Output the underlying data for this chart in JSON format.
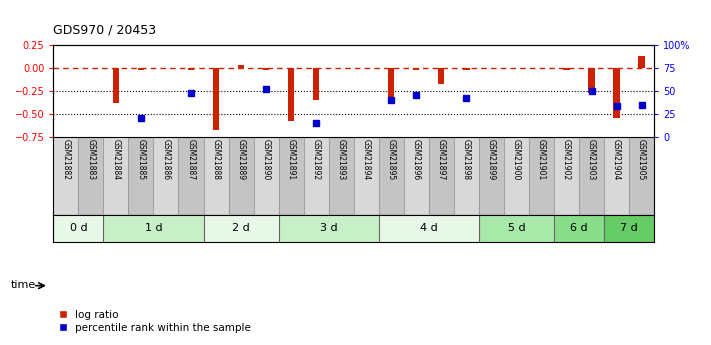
{
  "title": "GDS970 / 20453",
  "samples": [
    "GSM21882",
    "GSM21883",
    "GSM21884",
    "GSM21885",
    "GSM21886",
    "GSM21887",
    "GSM21888",
    "GSM21889",
    "GSM21890",
    "GSM21891",
    "GSM21892",
    "GSM21893",
    "GSM21894",
    "GSM21895",
    "GSM21896",
    "GSM21897",
    "GSM21898",
    "GSM21899",
    "GSM21900",
    "GSM21901",
    "GSM21902",
    "GSM21903",
    "GSM21904",
    "GSM21905"
  ],
  "log_ratio": [
    0.0,
    0.0,
    -0.38,
    -0.02,
    0.0,
    -0.02,
    -0.68,
    0.03,
    -0.02,
    -0.58,
    -0.35,
    0.0,
    0.0,
    -0.35,
    -0.02,
    -0.18,
    -0.02,
    0.0,
    0.0,
    0.0,
    -0.02,
    -0.27,
    -0.55,
    0.13
  ],
  "percentile_rank_pct": [
    null,
    null,
    null,
    20,
    null,
    48,
    null,
    null,
    52,
    null,
    15,
    null,
    null,
    40,
    45,
    null,
    42,
    null,
    null,
    null,
    null,
    50,
    33,
    35
  ],
  "groups": [
    {
      "label": "0 d",
      "start": 0,
      "end": 2,
      "color": "#e8f8e8"
    },
    {
      "label": "1 d",
      "start": 2,
      "end": 6,
      "color": "#c8f0c8"
    },
    {
      "label": "2 d",
      "start": 6,
      "end": 9,
      "color": "#e8f8e8"
    },
    {
      "label": "3 d",
      "start": 9,
      "end": 13,
      "color": "#c8f0c8"
    },
    {
      "label": "4 d",
      "start": 13,
      "end": 17,
      "color": "#e8f8e8"
    },
    {
      "label": "5 d",
      "start": 17,
      "end": 20,
      "color": "#a8e8a8"
    },
    {
      "label": "6 d",
      "start": 20,
      "end": 22,
      "color": "#88dd88"
    },
    {
      "label": "7 d",
      "start": 22,
      "end": 24,
      "color": "#66cc66"
    }
  ],
  "ylim_left": [
    -0.75,
    0.25
  ],
  "ylim_right": [
    0,
    100
  ],
  "yticks_left": [
    -0.75,
    -0.5,
    -0.25,
    0,
    0.25
  ],
  "yticks_right": [
    0,
    25,
    50,
    75,
    100
  ],
  "ytick_labels_right": [
    "0",
    "25",
    "50",
    "75",
    "100%"
  ],
  "bar_color": "#cc2200",
  "point_color": "#0000cc",
  "bg_color": "#ffffff",
  "label_bg_even": "#d8d8d8",
  "label_bg_odd": "#c4c4c4"
}
